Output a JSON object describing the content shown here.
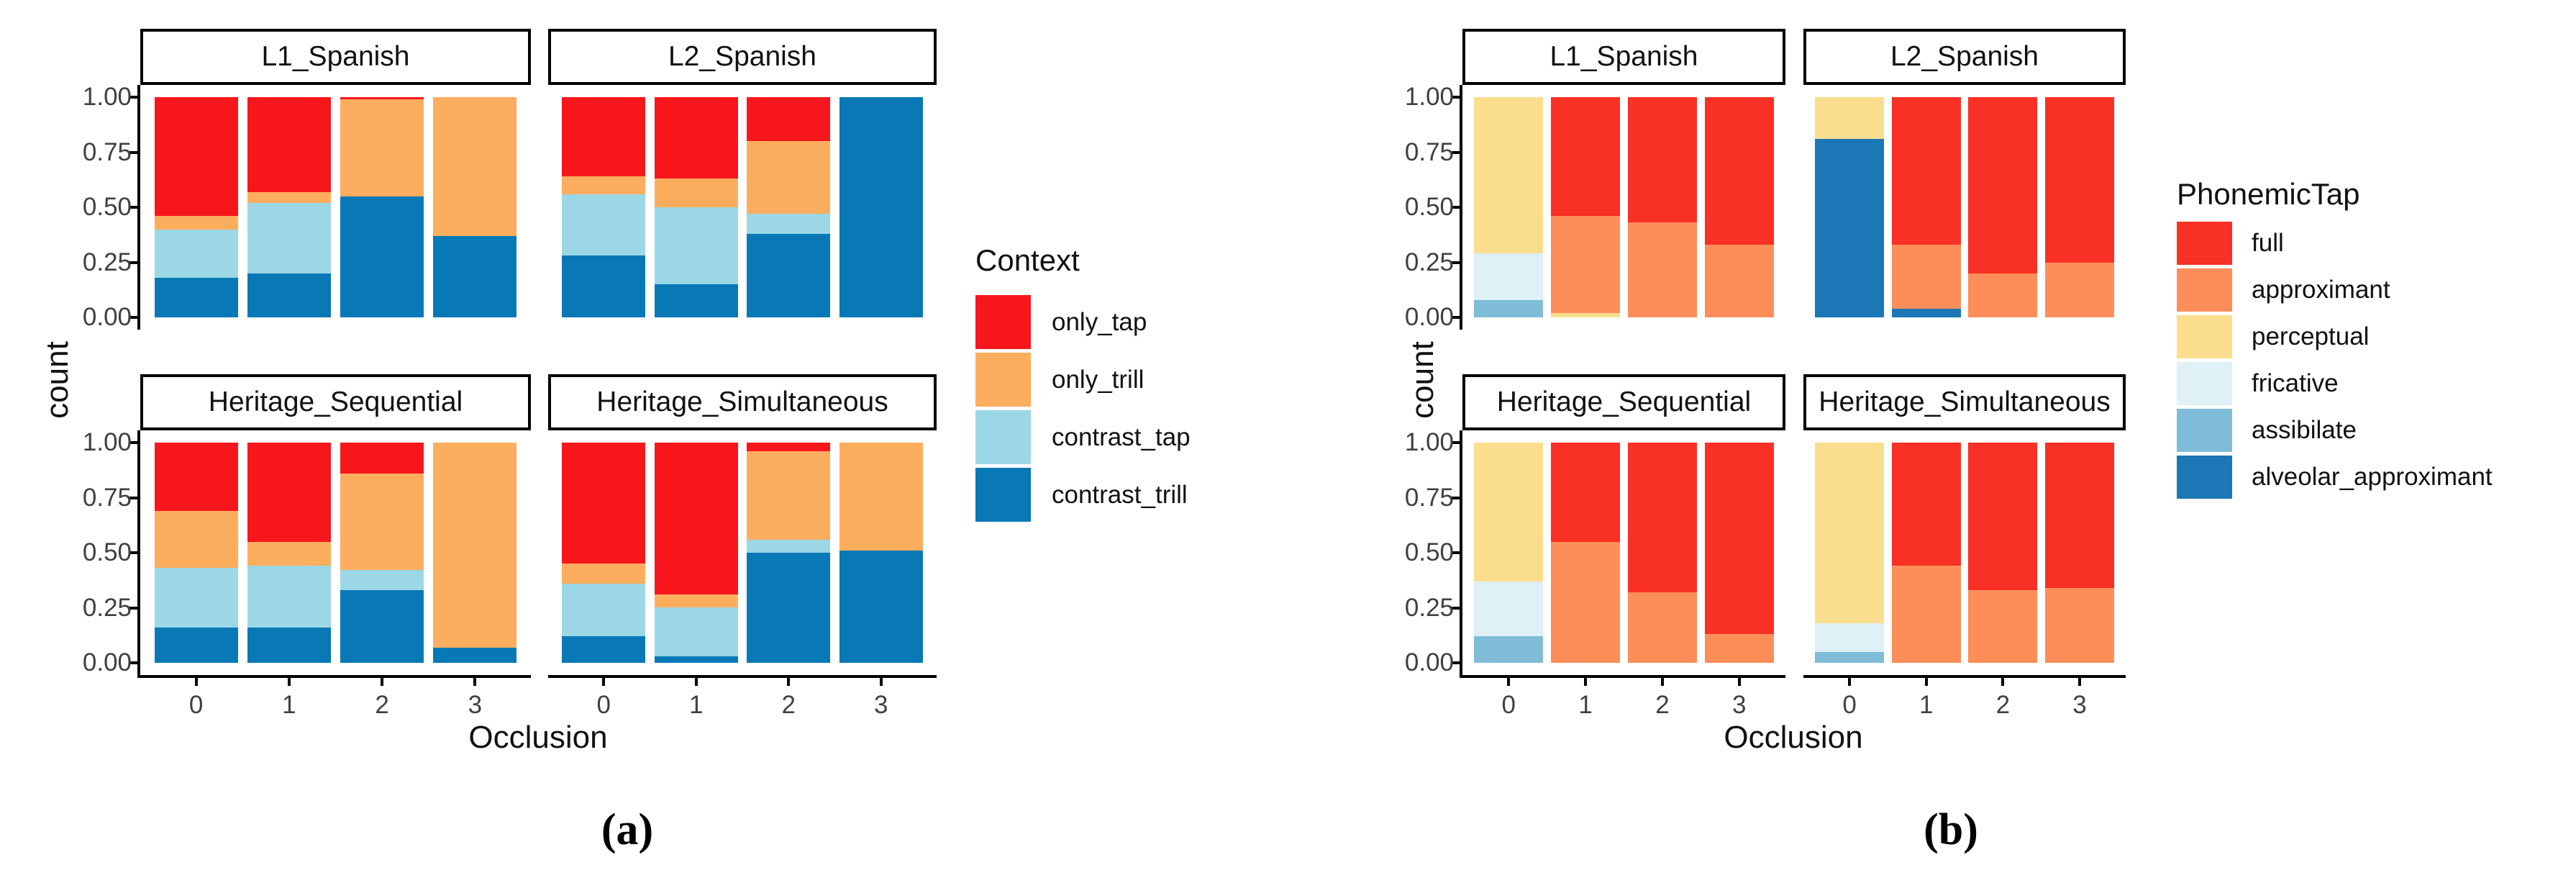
{
  "figure": {
    "captions": {
      "a": "(a)",
      "b": "(b)"
    }
  },
  "chart_data": [
    {
      "id": "a",
      "type": "bar",
      "stacked": true,
      "normalized": true,
      "title": "",
      "xlabel": "Occlusion",
      "ylabel": "count",
      "ylim": [
        0,
        1
      ],
      "grid": false,
      "categories": [
        "0",
        "1",
        "2",
        "3"
      ],
      "ytick_labels": [
        "0.00",
        "0.25",
        "0.50",
        "0.75",
        "1.00"
      ],
      "legend_position": "right",
      "legend": {
        "title": "Context",
        "items": [
          {
            "name": "only_tap",
            "color": "#F8161D"
          },
          {
            "name": "only_trill",
            "color": "#FDAD5E"
          },
          {
            "name": "contrast_tap",
            "color": "#9CD7E6"
          },
          {
            "name": "contrast_trill",
            "color": "#0879B6"
          }
        ]
      },
      "stack_order_bottom_to_top": [
        "contrast_trill",
        "contrast_tap",
        "only_trill",
        "only_tap"
      ],
      "facets": [
        {
          "label": "L1_Spanish",
          "bars": [
            [
              0.18,
              0.22,
              0.06,
              0.54
            ],
            [
              0.2,
              0.32,
              0.05,
              0.43
            ],
            [
              0.55,
              0.0,
              0.44,
              0.01
            ],
            [
              0.37,
              0.0,
              0.63,
              0.0
            ]
          ]
        },
        {
          "label": "L2_Spanish",
          "bars": [
            [
              0.28,
              0.28,
              0.08,
              0.36
            ],
            [
              0.15,
              0.35,
              0.13,
              0.37
            ],
            [
              0.38,
              0.09,
              0.33,
              0.2
            ],
            [
              1.0,
              0.0,
              0.0,
              0.0
            ]
          ]
        },
        {
          "label": "Heritage_Sequential",
          "bars": [
            [
              0.16,
              0.27,
              0.26,
              0.31
            ],
            [
              0.16,
              0.28,
              0.11,
              0.45
            ],
            [
              0.33,
              0.09,
              0.44,
              0.14
            ],
            [
              0.07,
              0.0,
              0.93,
              0.0
            ]
          ]
        },
        {
          "label": "Heritage_Simultaneous",
          "bars": [
            [
              0.12,
              0.24,
              0.09,
              0.55
            ],
            [
              0.03,
              0.22,
              0.06,
              0.69
            ],
            [
              0.5,
              0.06,
              0.4,
              0.04
            ],
            [
              0.51,
              0.0,
              0.49,
              0.0
            ]
          ]
        }
      ]
    },
    {
      "id": "b",
      "type": "bar",
      "stacked": true,
      "normalized": true,
      "title": "",
      "xlabel": "Occlusion",
      "ylabel": "count",
      "ylim": [
        0,
        1
      ],
      "grid": false,
      "categories": [
        "0",
        "1",
        "2",
        "3"
      ],
      "ytick_labels": [
        "0.00",
        "0.25",
        "0.50",
        "0.75",
        "1.00"
      ],
      "legend_position": "right",
      "legend": {
        "title": "PhonemicTap",
        "items": [
          {
            "name": "full",
            "color": "#F93025"
          },
          {
            "name": "approximant",
            "color": "#FD8E5A"
          },
          {
            "name": "perceptual",
            "color": "#FBDE8D"
          },
          {
            "name": "fricative",
            "color": "#DFF0F7"
          },
          {
            "name": "assibilate",
            "color": "#7EBCD8"
          },
          {
            "name": "alveolar_approximant",
            "color": "#1B77B5"
          }
        ]
      },
      "stack_order_bottom_to_top": [
        "alveolar_approximant",
        "assibilate",
        "fricative",
        "perceptual",
        "approximant",
        "full"
      ],
      "facets": [
        {
          "label": "L1_Spanish",
          "bars": [
            [
              0.0,
              0.08,
              0.21,
              0.71,
              0.0,
              0.0
            ],
            [
              0.0,
              0.0,
              0.0,
              0.02,
              0.44,
              0.54
            ],
            [
              0.0,
              0.0,
              0.0,
              0.0,
              0.43,
              0.57
            ],
            [
              0.0,
              0.0,
              0.0,
              0.0,
              0.33,
              0.67
            ]
          ]
        },
        {
          "label": "L2_Spanish",
          "bars": [
            [
              0.81,
              0.0,
              0.0,
              0.19,
              0.0,
              0.0
            ],
            [
              0.04,
              0.0,
              0.0,
              0.0,
              0.29,
              0.67
            ],
            [
              0.0,
              0.0,
              0.0,
              0.0,
              0.2,
              0.8
            ],
            [
              0.0,
              0.0,
              0.0,
              0.0,
              0.25,
              0.75
            ]
          ]
        },
        {
          "label": "Heritage_Sequential",
          "bars": [
            [
              0.0,
              0.12,
              0.25,
              0.63,
              0.0,
              0.0
            ],
            [
              0.0,
              0.0,
              0.0,
              0.0,
              0.55,
              0.45
            ],
            [
              0.0,
              0.0,
              0.0,
              0.0,
              0.32,
              0.68
            ],
            [
              0.0,
              0.0,
              0.0,
              0.0,
              0.13,
              0.87
            ]
          ]
        },
        {
          "label": "Heritage_Simultaneous",
          "bars": [
            [
              0.0,
              0.05,
              0.13,
              0.82,
              0.0,
              0.0
            ],
            [
              0.0,
              0.0,
              0.0,
              0.0,
              0.44,
              0.56
            ],
            [
              0.0,
              0.0,
              0.0,
              0.0,
              0.33,
              0.67
            ],
            [
              0.0,
              0.0,
              0.0,
              0.0,
              0.34,
              0.66
            ]
          ]
        }
      ]
    }
  ]
}
